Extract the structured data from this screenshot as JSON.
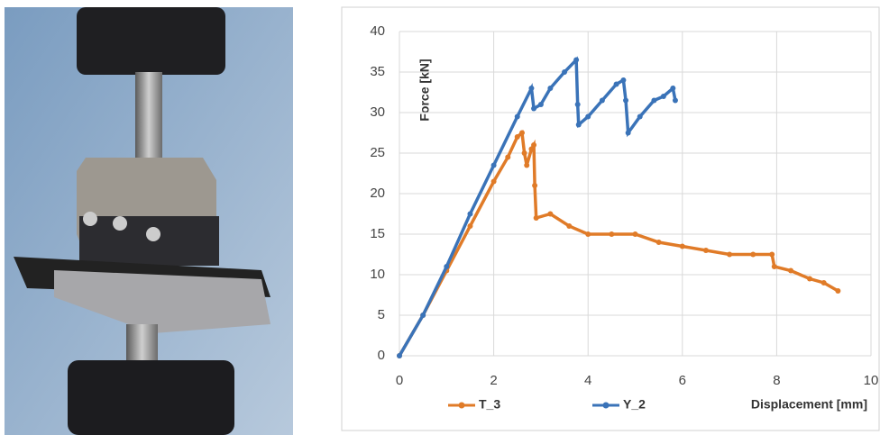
{
  "chart_data": {
    "type": "line",
    "xlabel": "Displacement [mm]",
    "ylabel": "Force [kN]",
    "xlim": [
      0,
      10
    ],
    "xticks": [
      0,
      2,
      4,
      6,
      8,
      10
    ],
    "ylim": [
      0,
      40
    ],
    "yticks": [
      0,
      5,
      10,
      15,
      20,
      25,
      30,
      35,
      40
    ],
    "grid": true,
    "legend": "bottom",
    "series": [
      {
        "name": "T_3",
        "color": "#e07b28",
        "x": [
          0,
          0.5,
          1,
          1.5,
          2,
          2.3,
          2.5,
          2.6,
          2.65,
          2.7,
          2.8,
          2.85,
          2.87,
          2.9,
          3.2,
          3.6,
          4,
          4.5,
          5,
          5.5,
          6,
          6.5,
          7,
          7.5,
          7.9,
          7.95,
          8.3,
          8.7,
          9,
          9.3
        ],
        "values": [
          0,
          5,
          10.5,
          16,
          21.5,
          24.5,
          27,
          27.5,
          25,
          23.5,
          25.5,
          26,
          21,
          17,
          17.5,
          16,
          15,
          15,
          15,
          14,
          13.5,
          13,
          12.5,
          12.5,
          12.5,
          11,
          10.5,
          9.5,
          9,
          8
        ]
      },
      {
        "name": "Y_2",
        "color": "#3a73b8",
        "x": [
          0,
          0.5,
          1,
          1.5,
          2,
          2.5,
          2.8,
          2.85,
          3,
          3.2,
          3.5,
          3.75,
          3.78,
          3.8,
          4,
          4.3,
          4.6,
          4.75,
          4.8,
          4.85,
          5.1,
          5.4,
          5.6,
          5.8,
          5.85
        ],
        "values": [
          0,
          5,
          11,
          17.5,
          23.5,
          29.5,
          33,
          30.5,
          31,
          33,
          35,
          36.5,
          31,
          28.5,
          29.5,
          31.5,
          33.5,
          34,
          31.5,
          27.5,
          29.5,
          31.5,
          32,
          33,
          31.5
        ]
      }
    ]
  }
}
